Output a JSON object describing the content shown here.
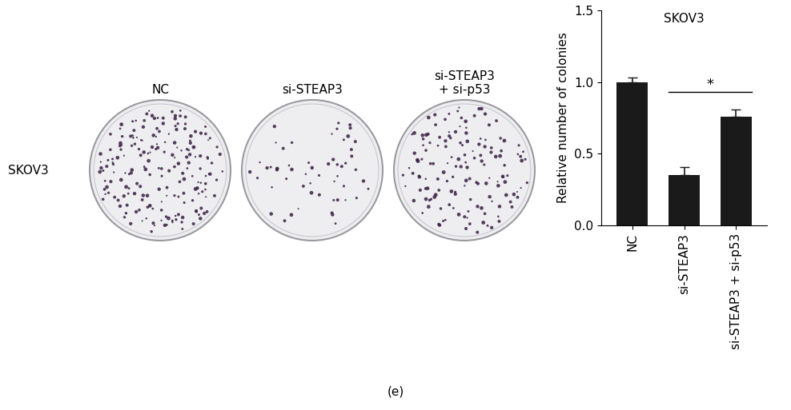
{
  "panel_label": "(e)",
  "plates": {
    "row_label": "SKOV3",
    "labels": [
      "NC",
      "si-STEAP3",
      "si-STEAP3\n+ si-p53"
    ]
  },
  "chart_data": {
    "type": "bar",
    "title": "SKOV3",
    "categories": [
      "NC",
      "si-STEAP3",
      "si-STEAP3 + si-p53"
    ],
    "values": [
      1.0,
      0.35,
      0.76
    ],
    "errors": [
      0.03,
      0.06,
      0.05
    ],
    "color": "#1a1a1a",
    "y_label": "Relative number of colonies",
    "ylim": [
      0,
      1.5
    ],
    "yticks": [
      {
        "value": 0,
        "label": "0.0"
      },
      {
        "value": 0.5,
        "label": "0.5"
      },
      {
        "value": 1.0,
        "label": "1.0"
      },
      {
        "value": 1.5,
        "label": "1.5"
      }
    ],
    "annotations": [
      {
        "text": "*",
        "between": [
          "si-STEAP3",
          "si-STEAP3 + si-p53"
        ]
      }
    ]
  }
}
